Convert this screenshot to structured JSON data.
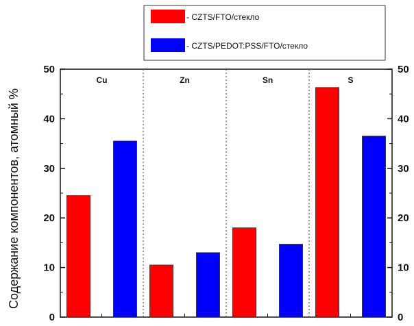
{
  "chart_data": {
    "type": "bar",
    "categories": [
      "Cu",
      "Zn",
      "Sn",
      "S"
    ],
    "series": [
      {
        "name": "- CZTS/FTO/стекло",
        "color": "#ff0000",
        "values": [
          24.5,
          10.5,
          18.0,
          46.3
        ]
      },
      {
        "name": "- CZTS/PEDOT:PSS/FTO/стекло",
        "color": "#0000ff",
        "values": [
          35.5,
          13.0,
          14.7,
          36.5
        ]
      }
    ],
    "ylabel": "Содержание компонентов, атомный %",
    "ylim": [
      0,
      50
    ],
    "yticks": [
      0,
      10,
      20,
      30,
      40,
      50
    ],
    "right_axis": true,
    "category_separators": "dotted",
    "legend_position": "top"
  }
}
